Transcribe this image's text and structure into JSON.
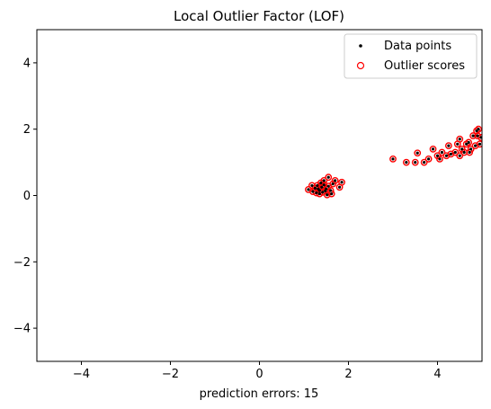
{
  "chart_data": {
    "type": "scatter",
    "title": "Local Outlier Factor (LOF)",
    "xlabel": "prediction errors: 15",
    "ylabel": "",
    "xlim": [
      -5,
      5
    ],
    "ylim": [
      -5,
      5
    ],
    "xticks": [
      -4,
      -2,
      0,
      2,
      4
    ],
    "yticks": [
      -4,
      -2,
      0,
      2,
      4
    ],
    "xtick_labels": [
      "−4",
      "−2",
      "0",
      "2",
      "4"
    ],
    "ytick_labels": [
      "−4",
      "−2",
      "0",
      "2",
      "4"
    ],
    "grid": false,
    "legend_position": "top-right",
    "colors": {
      "data_points": "#000000",
      "outlier_scores": "#ff0000"
    },
    "series": [
      {
        "name": "Data points",
        "marker": "dot",
        "points": [
          [
            1.1,
            0.18
          ],
          [
            1.2,
            0.12
          ],
          [
            1.25,
            0.22
          ],
          [
            1.3,
            0.3
          ],
          [
            1.35,
            0.15
          ],
          [
            1.4,
            0.25
          ],
          [
            1.42,
            0.1
          ],
          [
            1.45,
            0.32
          ],
          [
            1.5,
            0.2
          ],
          [
            1.55,
            0.28
          ],
          [
            1.35,
            0.05
          ],
          [
            1.6,
            0.15
          ],
          [
            1.65,
            0.35
          ],
          [
            1.7,
            0.45
          ],
          [
            1.55,
            0.55
          ],
          [
            1.28,
            0.08
          ],
          [
            1.38,
            0.38
          ],
          [
            1.48,
            0.14
          ],
          [
            1.32,
            0.2
          ],
          [
            1.52,
            0.02
          ],
          [
            1.8,
            0.25
          ],
          [
            1.85,
            0.4
          ],
          [
            1.62,
            0.05
          ],
          [
            1.18,
            0.3
          ],
          [
            1.45,
            0.45
          ],
          [
            3.0,
            1.1
          ],
          [
            3.3,
            1.0
          ],
          [
            3.5,
            1.0
          ],
          [
            3.55,
            1.28
          ],
          [
            3.7,
            1.0
          ],
          [
            3.8,
            1.1
          ],
          [
            3.9,
            1.4
          ],
          [
            4.0,
            1.2
          ],
          [
            4.05,
            1.1
          ],
          [
            4.1,
            1.3
          ],
          [
            4.2,
            1.2
          ],
          [
            4.25,
            1.5
          ],
          [
            4.3,
            1.25
          ],
          [
            4.4,
            1.3
          ],
          [
            4.45,
            1.55
          ],
          [
            4.5,
            1.2
          ],
          [
            4.5,
            1.7
          ],
          [
            4.55,
            1.4
          ],
          [
            4.6,
            1.3
          ],
          [
            4.65,
            1.55
          ],
          [
            4.7,
            1.6
          ],
          [
            4.75,
            1.4
          ],
          [
            4.8,
            1.8
          ],
          [
            4.85,
            1.5
          ],
          [
            4.9,
            1.8
          ],
          [
            4.92,
            2.0
          ],
          [
            4.95,
            1.55
          ],
          [
            4.98,
            1.75
          ],
          [
            4.88,
            1.95
          ],
          [
            4.72,
            1.3
          ]
        ]
      },
      {
        "name": "Outlier scores",
        "marker": "open-circle",
        "points": [
          [
            1.1,
            0.18
          ],
          [
            1.2,
            0.12
          ],
          [
            1.25,
            0.22
          ],
          [
            1.3,
            0.3
          ],
          [
            1.35,
            0.15
          ],
          [
            1.4,
            0.25
          ],
          [
            1.42,
            0.1
          ],
          [
            1.45,
            0.32
          ],
          [
            1.5,
            0.2
          ],
          [
            1.55,
            0.28
          ],
          [
            1.35,
            0.05
          ],
          [
            1.6,
            0.15
          ],
          [
            1.65,
            0.35
          ],
          [
            1.7,
            0.45
          ],
          [
            1.55,
            0.55
          ],
          [
            1.28,
            0.08
          ],
          [
            1.38,
            0.38
          ],
          [
            1.48,
            0.14
          ],
          [
            1.32,
            0.2
          ],
          [
            1.52,
            0.02
          ],
          [
            1.8,
            0.25
          ],
          [
            1.85,
            0.4
          ],
          [
            1.62,
            0.05
          ],
          [
            1.18,
            0.3
          ],
          [
            1.45,
            0.45
          ],
          [
            3.0,
            1.1
          ],
          [
            3.3,
            1.0
          ],
          [
            3.5,
            1.0
          ],
          [
            3.55,
            1.28
          ],
          [
            3.7,
            1.0
          ],
          [
            3.8,
            1.1
          ],
          [
            3.9,
            1.4
          ],
          [
            4.0,
            1.2
          ],
          [
            4.05,
            1.1
          ],
          [
            4.1,
            1.3
          ],
          [
            4.2,
            1.2
          ],
          [
            4.25,
            1.5
          ],
          [
            4.3,
            1.25
          ],
          [
            4.4,
            1.3
          ],
          [
            4.45,
            1.55
          ],
          [
            4.5,
            1.2
          ],
          [
            4.5,
            1.7
          ],
          [
            4.55,
            1.4
          ],
          [
            4.6,
            1.3
          ],
          [
            4.65,
            1.55
          ],
          [
            4.7,
            1.6
          ],
          [
            4.75,
            1.4
          ],
          [
            4.8,
            1.8
          ],
          [
            4.85,
            1.5
          ],
          [
            4.9,
            1.8
          ],
          [
            4.92,
            2.0
          ],
          [
            4.95,
            1.55
          ],
          [
            4.98,
            1.75
          ],
          [
            4.88,
            1.95
          ],
          [
            4.72,
            1.3
          ]
        ]
      }
    ]
  }
}
